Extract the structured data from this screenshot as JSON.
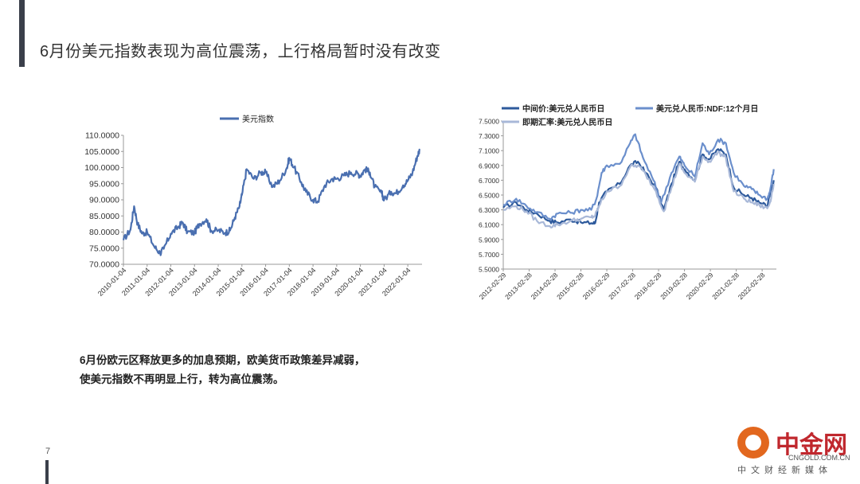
{
  "page": {
    "title": "6月份美元指数表现为高位震荡，上行格局暂时没有改变",
    "page_number": "7",
    "summary_lines": [
      "6月份欧元区释放更多的加息预期，欧美货币政策差异减弱，",
      "使美元指数不再明显上行，转为高位震荡。"
    ]
  },
  "logo": {
    "name": "中金网",
    "domain": "CNGOLD.COM.CN",
    "tagline": "中文财经新媒体"
  },
  "colors": {
    "usd_index": "#4a6fb0",
    "central_parity": "#2e5a9c",
    "ndf_12m": "#6b8fcc",
    "spot": "#a8b8d8",
    "axis": "#888888",
    "text": "#333333"
  },
  "chart_data": [
    {
      "type": "line",
      "title": "",
      "legend": "top-center",
      "ylim": [
        70,
        110
      ],
      "yticks": [
        "110.0000",
        "105.0000",
        "100.0000",
        "95.0000",
        "90.0000",
        "85.0000",
        "80.0000",
        "75.0000",
        "70.0000"
      ],
      "xticks": [
        "2010-01-04",
        "2011-01-04",
        "2012-01-04",
        "2013-01-04",
        "2014-01-04",
        "2015-01-04",
        "2016-01-04",
        "2017-01-04",
        "2018-01-04",
        "2019-01-04",
        "2020-01-04",
        "2021-01-04",
        "2022-01-04"
      ],
      "series": [
        {
          "name": "美元指数",
          "x": [
            2010.0,
            2010.3,
            2010.45,
            2010.6,
            2010.8,
            2011.0,
            2011.3,
            2011.55,
            2011.7,
            2012.0,
            2012.3,
            2012.5,
            2012.7,
            2013.0,
            2013.2,
            2013.5,
            2013.7,
            2014.0,
            2014.3,
            2014.5,
            2014.7,
            2014.9,
            2015.0,
            2015.2,
            2015.5,
            2015.8,
            2016.0,
            2016.3,
            2016.6,
            2016.9,
            2017.0,
            2017.2,
            2017.5,
            2017.7,
            2018.0,
            2018.2,
            2018.5,
            2018.8,
            2019.0,
            2019.3,
            2019.6,
            2019.9,
            2020.0,
            2020.2,
            2020.4,
            2020.6,
            2020.9,
            2021.0,
            2021.3,
            2021.5,
            2021.8,
            2022.0,
            2022.2,
            2022.4,
            2022.5
          ],
          "values": [
            77.5,
            80.8,
            88.0,
            82.5,
            79.5,
            80.0,
            75.5,
            73.5,
            74.8,
            79.5,
            81.5,
            83.0,
            80.0,
            79.8,
            82.5,
            84.0,
            80.5,
            80.5,
            79.8,
            80.5,
            84.5,
            88.0,
            91.5,
            99.5,
            96.5,
            98.5,
            98.5,
            94.0,
            96.0,
            100.0,
            103.0,
            100.0,
            95.5,
            92.5,
            90.0,
            89.5,
            94.5,
            96.5,
            96.5,
            97.5,
            98.5,
            98.0,
            97.5,
            99.5,
            98.5,
            94.0,
            92.0,
            90.0,
            92.5,
            92.0,
            94.5,
            96.0,
            98.5,
            103.5,
            105.5
          ]
        }
      ]
    },
    {
      "type": "line",
      "title": "",
      "legend": "top",
      "ylim": [
        5.5,
        7.5
      ],
      "yticks": [
        "7.5000",
        "7.3000",
        "7.1000",
        "6.9000",
        "6.7000",
        "6.5000",
        "6.3000",
        "6.1000",
        "5.9000",
        "5.7000",
        "5.5000"
      ],
      "xticks": [
        "2012-02-29",
        "2013-02-28",
        "2014-02-28",
        "2015-02-28",
        "2016-02-29",
        "2017-02-28",
        "2018-02-28",
        "2019-02-28",
        "2020-02-29",
        "2021-02-28",
        "2022-02-28"
      ],
      "series": [
        {
          "name": "中间价:美元兑人民币日",
          "x": [
            2012.0,
            2012.5,
            2012.9,
            2013.3,
            2013.8,
            2014.1,
            2014.6,
            2015.0,
            2015.4,
            2015.55,
            2015.7,
            2016.0,
            2016.5,
            2016.9,
            2017.2,
            2017.5,
            2017.9,
            2018.2,
            2018.5,
            2018.8,
            2019.0,
            2019.4,
            2019.7,
            2019.95,
            2020.3,
            2020.6,
            2020.9,
            2021.3,
            2021.6,
            2021.9,
            2022.2,
            2022.3,
            2022.45
          ],
          "values": [
            6.33,
            6.4,
            6.3,
            6.25,
            6.15,
            6.13,
            6.17,
            6.13,
            6.12,
            6.12,
            6.4,
            6.55,
            6.65,
            6.9,
            6.95,
            6.8,
            6.6,
            6.3,
            6.65,
            6.95,
            6.85,
            6.7,
            7.05,
            6.98,
            7.12,
            7.05,
            6.6,
            6.5,
            6.46,
            6.39,
            6.35,
            6.5,
            6.7
          ]
        },
        {
          "name": "美元兑人民币:NDF:12个月日",
          "x": [
            2012.0,
            2012.5,
            2012.9,
            2013.3,
            2013.8,
            2014.1,
            2014.6,
            2015.0,
            2015.4,
            2015.6,
            2015.8,
            2016.0,
            2016.5,
            2016.9,
            2017.1,
            2017.4,
            2017.8,
            2018.1,
            2018.5,
            2018.8,
            2019.0,
            2019.4,
            2019.7,
            2019.95,
            2020.3,
            2020.6,
            2020.9,
            2021.3,
            2021.6,
            2021.9,
            2022.2,
            2022.3,
            2022.45
          ],
          "values": [
            6.37,
            6.45,
            6.35,
            6.27,
            6.18,
            6.25,
            6.26,
            6.3,
            6.3,
            6.45,
            6.8,
            6.9,
            6.92,
            7.2,
            7.32,
            7.0,
            6.7,
            6.4,
            6.8,
            7.02,
            6.9,
            6.75,
            7.2,
            7.05,
            7.25,
            7.2,
            6.8,
            6.62,
            6.58,
            6.5,
            6.45,
            6.55,
            6.85
          ]
        },
        {
          "name": "即期汇率:美元兑人民币日",
          "x": [
            2012.0,
            2012.5,
            2012.9,
            2013.3,
            2013.8,
            2014.1,
            2014.6,
            2015.0,
            2015.4,
            2015.55,
            2015.7,
            2016.0,
            2016.5,
            2016.9,
            2017.2,
            2017.5,
            2017.9,
            2018.2,
            2018.5,
            2018.8,
            2019.0,
            2019.4,
            2019.7,
            2019.95,
            2020.3,
            2020.6,
            2020.9,
            2021.3,
            2021.6,
            2021.9,
            2022.2,
            2022.3,
            2022.45
          ],
          "values": [
            6.3,
            6.35,
            6.28,
            6.15,
            6.08,
            6.1,
            6.15,
            6.18,
            6.2,
            6.22,
            6.35,
            6.55,
            6.62,
            6.88,
            6.9,
            6.78,
            6.55,
            6.28,
            6.6,
            6.92,
            6.8,
            6.68,
            7.02,
            6.95,
            7.08,
            7.0,
            6.55,
            6.45,
            6.4,
            6.36,
            6.32,
            6.4,
            6.65
          ]
        }
      ]
    }
  ]
}
